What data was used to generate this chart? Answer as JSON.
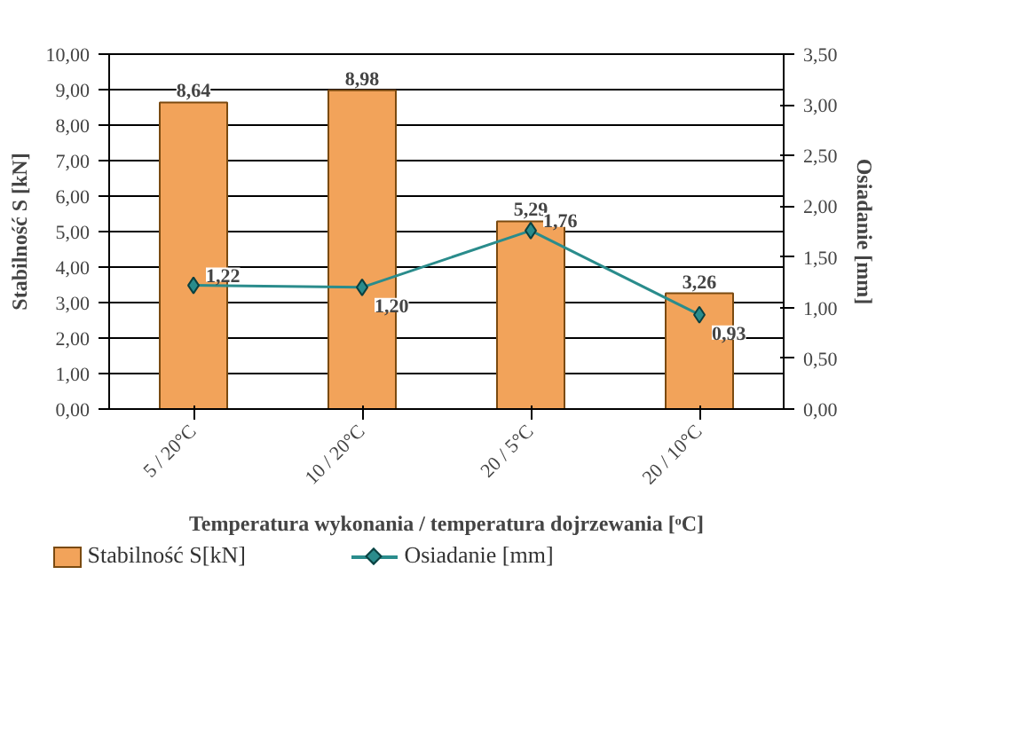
{
  "chart_data": {
    "type": "bar",
    "categories": [
      "5 / 20°C",
      "10 / 20°C",
      "20 / 5°C",
      "20 / 10°C"
    ],
    "xlabel": "Temperatura wykonania / temperatura dojrzewania [ᵒC]",
    "ylabel": "Stabilność S [kN]",
    "y2label": "Osiadanie [mm]",
    "series": [
      {
        "name": "Stabilność S[kN]",
        "color": "#f2a35a",
        "values": [
          8.64,
          8.98,
          5.29,
          3.26
        ],
        "value_labels": [
          "8,64",
          "8,98",
          "5,29",
          "3,26"
        ]
      },
      {
        "name": "Osiadanie [mm]",
        "type": "line",
        "axis": "y2",
        "color": "#2a8c8c",
        "marker": "diamond",
        "values": [
          1.22,
          1.2,
          1.76,
          0.93
        ],
        "value_labels": [
          "1,22",
          "1,20",
          "1,76",
          "0,93"
        ]
      }
    ],
    "ylim": [
      0,
      10
    ],
    "yticks": [
      {
        "value": 0,
        "label": "0,00"
      },
      {
        "value": 1,
        "label": "1,00"
      },
      {
        "value": 2,
        "label": "2,00"
      },
      {
        "value": 3,
        "label": "3,00"
      },
      {
        "value": 4,
        "label": "4,00"
      },
      {
        "value": 5,
        "label": "5,00"
      },
      {
        "value": 6,
        "label": "6,00"
      },
      {
        "value": 7,
        "label": "7,00"
      },
      {
        "value": 8,
        "label": "8,00"
      },
      {
        "value": 9,
        "label": "9,00"
      },
      {
        "value": 10,
        "label": "10,00"
      }
    ],
    "y2lim": [
      0,
      3.5
    ],
    "y2ticks": [
      {
        "value": 0,
        "label": "0,00"
      },
      {
        "value": 0.5,
        "label": "0,50"
      },
      {
        "value": 1,
        "label": "1,00"
      },
      {
        "value": 1.5,
        "label": "1,50"
      },
      {
        "value": 2,
        "label": "2,00"
      },
      {
        "value": 2.5,
        "label": "2,50"
      },
      {
        "value": 3,
        "label": "3,00"
      },
      {
        "value": 3.5,
        "label": "3,50"
      }
    ],
    "grid": "y",
    "legend": "bottom"
  }
}
